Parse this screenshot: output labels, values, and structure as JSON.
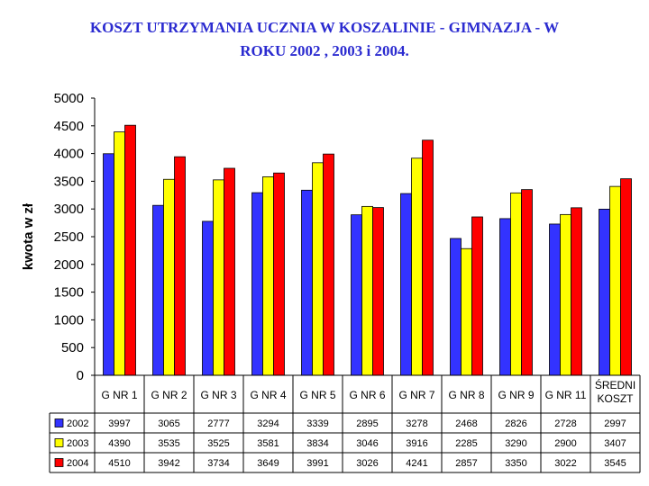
{
  "chart_data": {
    "type": "bar",
    "title_line1": "KOSZT UTRZYMANIA UCZNIA W KOSZALINIE - GIMNAZJA - W",
    "title_line2": "ROKU 2002 , 2003 i 2004.",
    "ylabel": "kwota w zł",
    "ylim": [
      0,
      5000
    ],
    "yticks": [
      0,
      500,
      1000,
      1500,
      2000,
      2500,
      3000,
      3500,
      4000,
      4500,
      5000
    ],
    "grid": false,
    "legend": "data-table",
    "categories": [
      "G NR 1",
      "G NR 2",
      "G NR 3",
      "G NR 4",
      "G NR 5",
      "G NR 6",
      "G NR 7",
      "G NR 8",
      "G NR 9",
      "G NR 11",
      "ŚREDNI KOSZT"
    ],
    "series": [
      {
        "name": "2002",
        "color": "#3333ff",
        "values": [
          3997,
          3065,
          2777,
          3294,
          3339,
          2895,
          3278,
          2468,
          2826,
          2728,
          2997
        ]
      },
      {
        "name": "2003",
        "color": "#ffff00",
        "values": [
          4390,
          3535,
          3525,
          3581,
          3834,
          3046,
          3916,
          2285,
          3290,
          2900,
          3407
        ]
      },
      {
        "name": "2004",
        "color": "#ff0000",
        "values": [
          4510,
          3942,
          3734,
          3649,
          3991,
          3026,
          4241,
          2857,
          3350,
          3022,
          3545
        ]
      }
    ]
  }
}
